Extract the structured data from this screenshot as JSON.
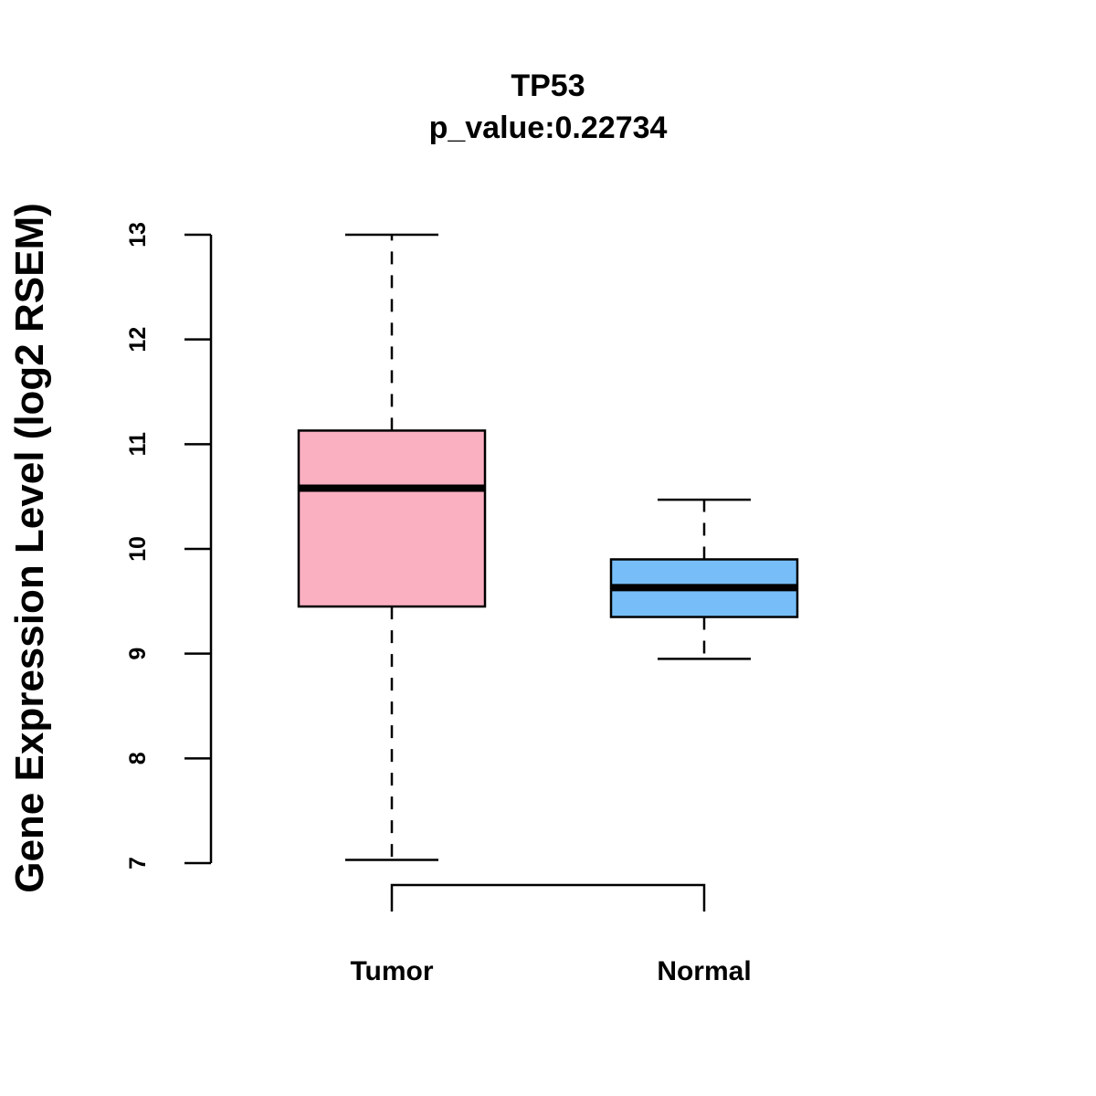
{
  "chart_data": {
    "type": "boxplot",
    "title": "TP53",
    "subtitle": "p_value:0.22734",
    "xlabel": "",
    "ylabel": "Gene Expression Level (log2 RSEM)",
    "ylim": [
      7,
      13
    ],
    "yticks": [
      "7",
      "8",
      "9",
      "10",
      "11",
      "12",
      "13"
    ],
    "categories": [
      "Tumor",
      "Normal"
    ],
    "boxes": [
      {
        "name": "Tumor",
        "min": 7.03,
        "q1": 9.45,
        "median": 10.58,
        "q3": 11.13,
        "max": 13.0,
        "color": "#fbb0c2"
      },
      {
        "name": "Normal",
        "min": 8.95,
        "q1": 9.35,
        "median": 9.63,
        "q3": 9.9,
        "max": 10.47,
        "color": "#77bef8"
      }
    ],
    "comparison_bracket": {
      "from": "Tumor",
      "to": "Normal"
    }
  }
}
